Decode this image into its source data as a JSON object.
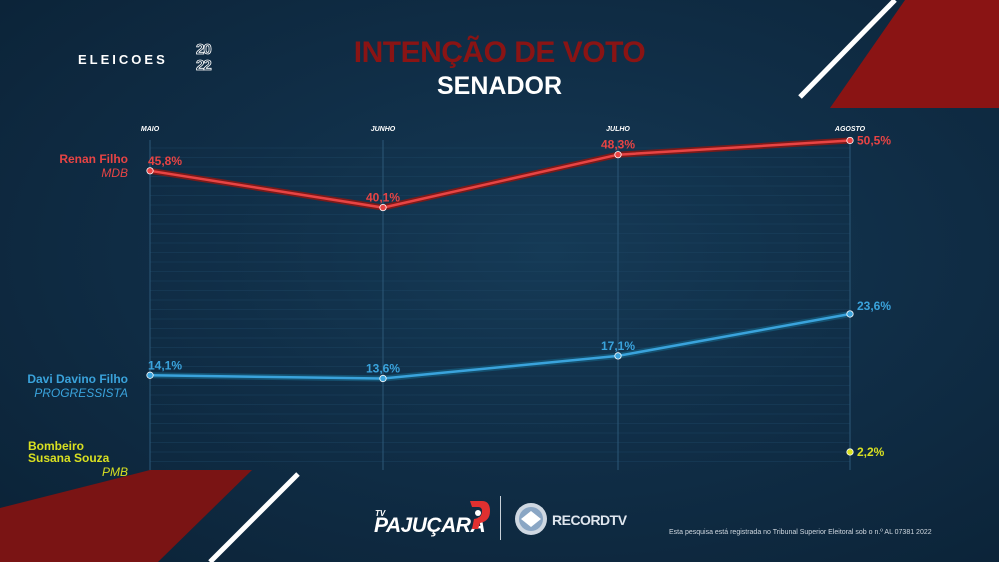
{
  "header": {
    "logo_text": "ELEICOES",
    "logo_year": "2022",
    "title": "INTENÇÃO DE VOTO",
    "subtitle": "SENADOR"
  },
  "chart_data": {
    "type": "line",
    "categories": [
      "MAIO",
      "JUNHO",
      "JULHO",
      "AGOSTO"
    ],
    "series": [
      {
        "name": "Renan Filho",
        "party": "MDB",
        "color": "#e84444",
        "values": [
          45.8,
          40.1,
          48.3,
          50.5
        ],
        "labels": [
          "45,8%",
          "40,1%",
          "48,3%",
          "50,5%"
        ]
      },
      {
        "name": "Davi Davino Filho",
        "party": "PROGRESSISTA",
        "color": "#3aa3dc",
        "values": [
          14.1,
          13.6,
          17.1,
          23.6
        ],
        "labels": [
          "14,1%",
          "13,6%",
          "17,1%",
          "23,6%"
        ]
      },
      {
        "name": "Bombeiro Susana Souza",
        "party": "PMB",
        "color": "#d9e021",
        "values": [
          null,
          null,
          null,
          2.2
        ],
        "labels": [
          null,
          null,
          null,
          "2,2%"
        ]
      }
    ],
    "title": "INTENÇÃO DE VOTO - SENADOR",
    "grid": true
  },
  "footer": {
    "tv_small": "TV",
    "brand1": "PAJUÇARA",
    "brand2": "RECORDTV",
    "disclaimer": "Esta pesquisa está registrada no Tribunal Superior Eleitoral sob o n.º AL 07381 2022"
  }
}
